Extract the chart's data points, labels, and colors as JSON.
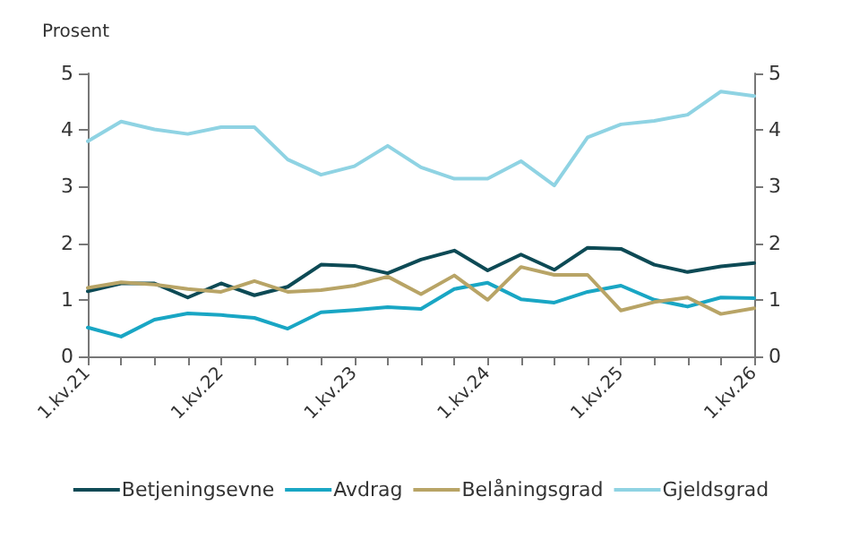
{
  "chart_data": {
    "type": "line",
    "ylabel": "Prosent",
    "categories": [
      "1.kv.21",
      null,
      null,
      null,
      "1.kv.22",
      null,
      null,
      null,
      "1.kv.23",
      null,
      null,
      null,
      "1.kv.24",
      null,
      null,
      null,
      "1.kv.25",
      null,
      null,
      null,
      "1.kv.26"
    ],
    "series": [
      {
        "name": "Betjeningsevne",
        "color": "#0d4a55",
        "values": [
          1.15,
          1.29,
          1.29,
          1.04,
          1.29,
          1.08,
          1.23,
          1.62,
          1.6,
          1.47,
          1.71,
          1.87,
          1.52,
          1.8,
          1.53,
          1.92,
          1.9,
          1.62,
          1.49,
          1.59,
          1.65
        ]
      },
      {
        "name": "Avdrag",
        "color": "#19a6c4",
        "values": [
          0.51,
          0.35,
          0.65,
          0.76,
          0.73,
          0.68,
          0.49,
          0.78,
          0.82,
          0.87,
          0.84,
          1.19,
          1.3,
          1.01,
          0.95,
          1.14,
          1.25,
          1.0,
          0.88,
          1.04,
          1.03
        ]
      },
      {
        "name": "Belåningsgrad",
        "color": "#b8a466",
        "values": [
          1.21,
          1.31,
          1.27,
          1.19,
          1.14,
          1.33,
          1.14,
          1.17,
          1.25,
          1.41,
          1.1,
          1.43,
          1.0,
          1.58,
          1.44,
          1.44,
          0.81,
          0.96,
          1.04,
          0.75,
          0.85
        ]
      },
      {
        "name": "Gjeldsgrad",
        "color": "#8fd3e3",
        "values": [
          3.8,
          4.15,
          4.01,
          3.93,
          4.05,
          4.05,
          3.48,
          3.21,
          3.36,
          3.72,
          3.34,
          3.14,
          3.14,
          3.45,
          3.02,
          3.87,
          4.1,
          4.16,
          4.27,
          4.68,
          4.6
        ]
      }
    ],
    "ylim": [
      0,
      5
    ],
    "yticks": [
      0,
      1,
      2,
      3,
      4,
      5
    ],
    "y2lim": [
      0,
      5
    ],
    "y2ticks": [
      0,
      1,
      2,
      3,
      4,
      5
    ],
    "grid": false,
    "legend": "bottom",
    "marker": "none",
    "line_style": "solid"
  }
}
